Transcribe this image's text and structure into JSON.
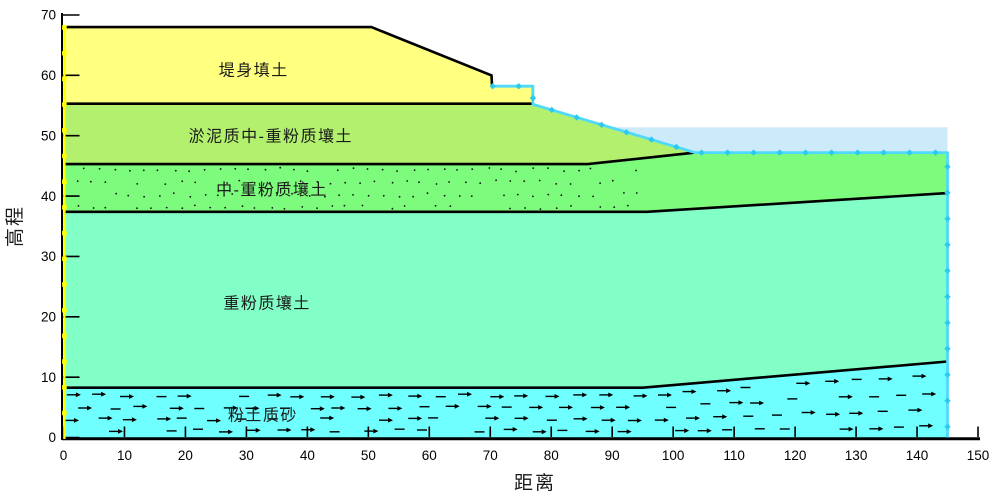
{
  "chart_data": {
    "type": "area",
    "title": "",
    "xlabel": "距离",
    "ylabel": "高程",
    "xlim": [
      0,
      150
    ],
    "ylim": [
      0,
      70
    ],
    "grid": false,
    "legend": "none",
    "x_ticks": [
      "0",
      "10",
      "20",
      "30",
      "40",
      "50",
      "60",
      "70",
      "80",
      "90",
      "100",
      "110",
      "120",
      "130",
      "140",
      "150"
    ],
    "y_ticks": [
      "0",
      "10",
      "20",
      "30",
      "40",
      "50",
      "60",
      "70"
    ],
    "layers": [
      {
        "key": "embankment-fill",
        "name": "堤身填土",
        "fill": "#FFFF80",
        "pattern": "none",
        "label_at": {
          "x": 31.2,
          "el": 61.0
        },
        "polygon": [
          [
            0,
            68
          ],
          [
            50.5,
            68
          ],
          [
            70.2,
            60
          ],
          [
            70.3,
            58.2
          ],
          [
            77,
            58.2
          ],
          [
            77,
            55.3
          ],
          [
            0,
            55.3
          ]
        ]
      },
      {
        "key": "muddy-silty-loam",
        "name": "淤泥质中-重粉质壤土",
        "fill": "#B2F06E",
        "pattern": "none",
        "label_at": {
          "x": 34.0,
          "el": 50.0
        },
        "polygon": [
          [
            0,
            55.3
          ],
          [
            77,
            55.3
          ],
          [
            103.6,
            47.2
          ],
          [
            86,
            45.3
          ],
          [
            0,
            45.3
          ]
        ]
      },
      {
        "key": "mid-heavy-silty-loam",
        "name": "中-重粉质壤土",
        "fill": "#7CFB7C",
        "pattern": "dots",
        "label_at": {
          "x": 34.2,
          "el": 41.2
        },
        "polygon": [
          [
            0,
            45.3
          ],
          [
            86,
            45.3
          ],
          [
            103.6,
            47.2
          ],
          [
            145,
            47.2
          ],
          [
            145,
            40.5
          ],
          [
            95.7,
            37.4
          ],
          [
            0,
            37.4
          ]
        ]
      },
      {
        "key": "heavy-silty-loam",
        "name": "重粉质壤土",
        "fill": "#82FFC6",
        "pattern": "none",
        "label_at": {
          "x": 33.4,
          "el": 22.4
        },
        "polygon": [
          [
            0,
            37.4
          ],
          [
            95.7,
            37.4
          ],
          [
            145,
            40.5
          ],
          [
            145,
            12.6
          ],
          [
            95,
            8.25
          ],
          [
            0,
            8.25
          ]
        ]
      },
      {
        "key": "silty-sand",
        "name": "粉土质砂",
        "fill": "#6FFFFF",
        "pattern": "flow-arrows",
        "label_at": {
          "x": 32.7,
          "el": 3.8
        },
        "polygon": [
          [
            0,
            8.25
          ],
          [
            95,
            8.25
          ],
          [
            145,
            12.6
          ],
          [
            145,
            0
          ],
          [
            0,
            0
          ]
        ]
      }
    ],
    "boundaries": [
      [
        [
          0,
          68
        ],
        [
          50.5,
          68
        ],
        [
          70.2,
          60
        ],
        [
          70.3,
          58.2
        ]
      ],
      [
        [
          0,
          55.3
        ],
        [
          77,
          55.3
        ]
      ],
      [
        [
          0,
          45.3
        ],
        [
          86,
          45.3
        ],
        [
          103.6,
          47.2
        ]
      ],
      [
        [
          0,
          37.4
        ],
        [
          95.7,
          37.4
        ],
        [
          145,
          40.5
        ]
      ],
      [
        [
          0,
          8.25
        ],
        [
          95,
          8.25
        ],
        [
          145,
          12.6
        ]
      ]
    ],
    "water": {
      "fill": "#CDEAF9",
      "surface_el": 51.4,
      "polygon": [
        [
          89.6,
          51.4
        ],
        [
          145,
          51.4
        ],
        [
          145,
          47.2
        ],
        [
          103.6,
          47.2
        ]
      ]
    },
    "phreatic_line": {
      "color": "#4FDAFB",
      "marker_color": "#2CC9F0",
      "points": [
        [
          70.4,
          58.2
        ],
        [
          77,
          58.2
        ],
        [
          77,
          55.2
        ],
        [
          103.6,
          47.2
        ],
        [
          145,
          47.2
        ],
        [
          145,
          0
        ]
      ]
    },
    "left_edge": {
      "color": "#FFFF00",
      "x": 0.15,
      "el_top": 67.9,
      "el_bottom": 0.0
    }
  },
  "colors": {
    "background": "#FFFFFF",
    "boundary": "#000000",
    "text": "#1A1A1A",
    "axis": "#000000"
  }
}
